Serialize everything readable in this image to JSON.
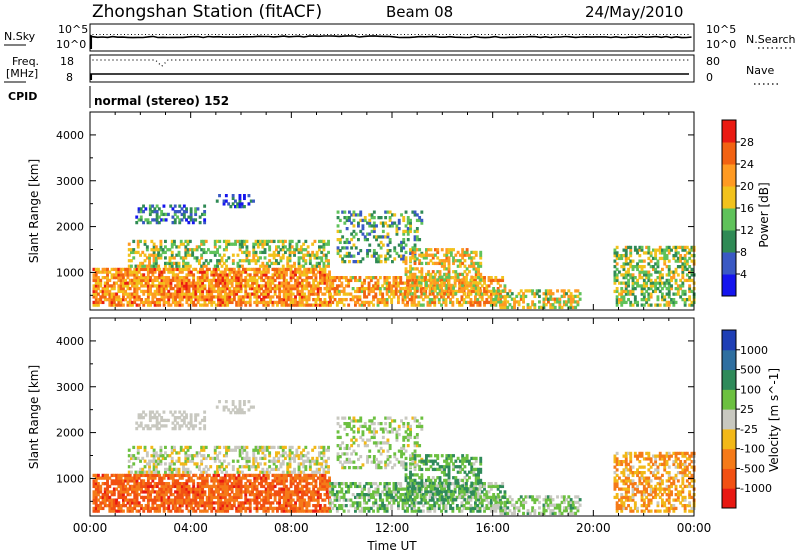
{
  "header": {
    "station": "Zhongshan Station (fitACF)",
    "beam": "Beam 08",
    "date": "24/May/2010"
  },
  "strip_nsky": {
    "left_label": "N.Sky",
    "right_label": "N.Search",
    "left_ticks": [
      "10^5",
      "10^0"
    ],
    "right_ticks": [
      "10^5",
      "10^0"
    ]
  },
  "strip_freq": {
    "left_label_1": "Freq.",
    "left_label_2": "[MHz]",
    "right_label": "Nave",
    "left_ticks": [
      "18",
      "8"
    ],
    "right_ticks": [
      "80",
      "0"
    ]
  },
  "strip_cpid": {
    "label": "CPID",
    "mode_text": "normal (stereo) 152"
  },
  "chart_data": [
    {
      "type": "heatmap",
      "name_key": "power",
      "ylabel": "Slant Range [km]",
      "xlabel": "",
      "xlim": [
        0,
        24
      ],
      "ylim": [
        180,
        4500
      ],
      "yticks": [
        "1000",
        "2000",
        "3000",
        "4000"
      ],
      "colorbar": {
        "label": "Power [dB]",
        "ticks": [
          "4",
          "8",
          "12",
          "16",
          "20",
          "24",
          "28"
        ],
        "colors": [
          "#1515ee",
          "#3a59c4",
          "#2f8a55",
          "#5fc25a",
          "#f2c21c",
          "#ff9a22",
          "#f26212",
          "#ea1a12"
        ]
      }
    },
    {
      "type": "heatmap",
      "name_key": "velocity",
      "ylabel": "Slant Range [km]",
      "xlabel": "Time UT",
      "xlim": [
        0,
        24
      ],
      "ylim": [
        180,
        4500
      ],
      "yticks": [
        "1000",
        "2000",
        "3000",
        "4000"
      ],
      "xticks": [
        "00:00",
        "04:00",
        "08:00",
        "12:00",
        "16:00",
        "20:00",
        "00:00"
      ],
      "colorbar": {
        "label": "Velocity [m s^-1]",
        "ticks": [
          "1000",
          "500",
          "100",
          "25",
          "-25",
          "-100",
          "-500",
          "-1000"
        ],
        "colors": [
          "#1f3fb5",
          "#2f6fa0",
          "#2f8a5a",
          "#6cc040",
          "#c8c8c0",
          "#f2b818",
          "#f57a18",
          "#f25012",
          "#e81812"
        ]
      }
    }
  ]
}
